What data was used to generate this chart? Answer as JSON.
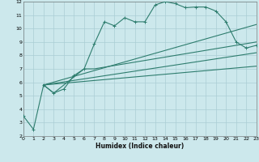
{
  "xlabel": "Humidex (Indice chaleur)",
  "bg_color": "#cce8ec",
  "grid_color": "#aacdd4",
  "line_color": "#2e7d6e",
  "xlim": [
    0,
    23
  ],
  "ylim": [
    2,
    12
  ],
  "xticks": [
    0,
    1,
    2,
    3,
    4,
    5,
    6,
    7,
    8,
    9,
    10,
    11,
    12,
    13,
    14,
    15,
    16,
    17,
    18,
    19,
    20,
    21,
    22,
    23
  ],
  "yticks": [
    2,
    3,
    4,
    5,
    6,
    7,
    8,
    9,
    10,
    11,
    12
  ],
  "line1_x": [
    0,
    1,
    2,
    3,
    4,
    5,
    6,
    7,
    8,
    9,
    10,
    11,
    12,
    13,
    14,
    15,
    16,
    17,
    18,
    19,
    20,
    21,
    22,
    23
  ],
  "line1_y": [
    3.5,
    2.5,
    5.8,
    5.2,
    5.5,
    6.5,
    7.0,
    8.85,
    10.5,
    10.2,
    10.8,
    10.5,
    10.5,
    11.75,
    12.0,
    11.85,
    11.55,
    11.6,
    11.6,
    11.3,
    10.5,
    9.0,
    8.55,
    8.75
  ],
  "line2_x": [
    2,
    3,
    6,
    7,
    23
  ],
  "line2_y": [
    5.8,
    5.2,
    7.0,
    7.0,
    9.0
  ],
  "line3_x": [
    2,
    23
  ],
  "line3_y": [
    5.8,
    10.3
  ],
  "line4_x": [
    2,
    23
  ],
  "line4_y": [
    5.8,
    8.2
  ],
  "line5_x": [
    2,
    23
  ],
  "line5_y": [
    5.8,
    7.2
  ]
}
